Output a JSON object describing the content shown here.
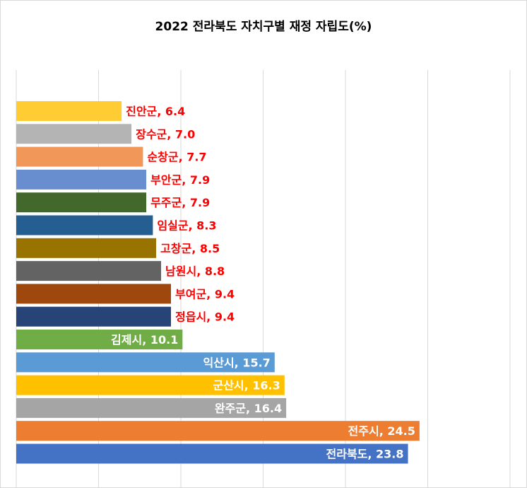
{
  "chart_data": {
    "type": "bar",
    "orientation": "horizontal",
    "title": "2022  전라북도 자치구별 재정 자립도(%)",
    "xlabel": "",
    "ylabel": "",
    "xlim": [
      0,
      30
    ],
    "grid": true,
    "legend": "none",
    "categories": [
      "진안군",
      "장수군",
      "순창군",
      "부안군",
      "무주군",
      "임실군",
      "고창군",
      "남원시",
      "부여군",
      "정읍시",
      "김제시",
      "익산시",
      "군산시",
      "완주군",
      "전주시",
      "전라북도"
    ],
    "values": [
      6.4,
      7.0,
      7.7,
      7.9,
      7.9,
      8.3,
      8.5,
      8.8,
      9.4,
      9.4,
      10.1,
      15.7,
      16.3,
      16.4,
      24.5,
      23.8
    ],
    "data_labels": [
      "진안군, 6.4",
      "장수군, 7.0",
      "순창군, 7.7",
      "부안군, 7.9",
      "무주군, 7.9",
      "임실군, 8.3",
      "고창군, 8.5",
      "남원시, 8.8",
      "부여군, 9.4",
      "정읍시, 9.4",
      "김제시, 10.1",
      "익산시, 15.7",
      "군산시, 16.3",
      "완주군, 16.4",
      "전주시, 24.5",
      "전라북도, 23.8"
    ],
    "colors": [
      "#FFCD33",
      "#B4B4B4",
      "#F1975A",
      "#698ED0",
      "#43682B",
      "#255E91",
      "#997300",
      "#636363",
      "#9E480E",
      "#264478",
      "#70AD47",
      "#5B9BD5",
      "#FFC000",
      "#A5A5A5",
      "#ED7D31",
      "#4472C4"
    ],
    "label_colors": [
      "#FF0000",
      "#FF0000",
      "#FF0000",
      "#FF0000",
      "#FF0000",
      "#FF0000",
      "#FF0000",
      "#FF0000",
      "#FF0000",
      "#FF0000",
      "#FFFFFF",
      "#FFFFFF",
      "#FFFFFF",
      "#FFFFFF",
      "#FFFFFF",
      "#FFFFFF"
    ],
    "label_positions": [
      "outside",
      "outside",
      "outside",
      "outside",
      "outside",
      "outside",
      "outside",
      "outside",
      "outside",
      "outside",
      "inside",
      "inside",
      "inside",
      "inside",
      "inside",
      "inside"
    ],
    "gridline_color": "#D9D9D9"
  }
}
